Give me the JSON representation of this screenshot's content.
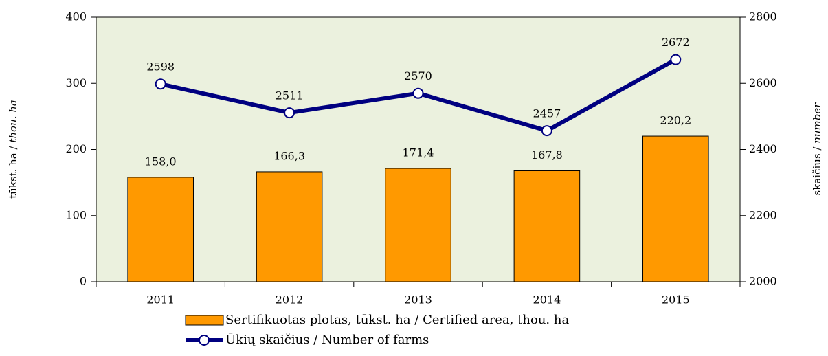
{
  "chart_data": {
    "type": "combo",
    "categories": [
      "2011",
      "2012",
      "2013",
      "2014",
      "2015"
    ],
    "series": [
      {
        "name": "Sertifikuotas plotas, tūkst. ha / Certified area, thou. ha",
        "type": "bar",
        "color": "#ff9900",
        "values": [
          158.0,
          166.3,
          171.4,
          167.8,
          220.2
        ],
        "value_labels": [
          "158,0",
          "166,3",
          "171,4",
          "167,8",
          "220,2"
        ]
      },
      {
        "name": "Ūkių skaičius / Number of farms",
        "type": "line",
        "axis": "y2",
        "color": "#000080",
        "values": [
          2598,
          2511,
          2570,
          2457,
          2672
        ]
      }
    ],
    "ylabel": [
      "tūkst. ha /",
      "thou. ha"
    ],
    "y2label": [
      "skaičius /",
      "number"
    ],
    "ylim": [
      0,
      400
    ],
    "yticks": [
      0,
      100,
      200,
      300,
      400
    ],
    "y2lim": [
      2000,
      2800
    ],
    "y2ticks": [
      2000,
      2200,
      2400,
      2600,
      2800
    ],
    "background": "#ebf1de"
  }
}
